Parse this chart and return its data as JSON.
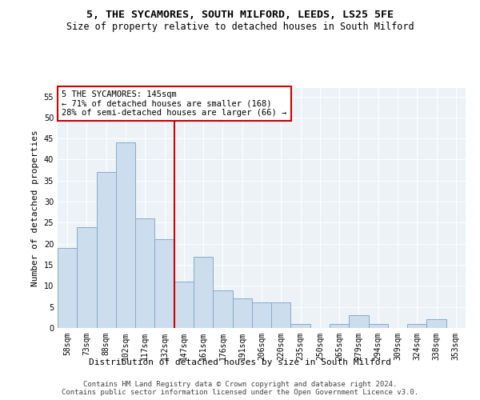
{
  "title1": "5, THE SYCAMORES, SOUTH MILFORD, LEEDS, LS25 5FE",
  "title2": "Size of property relative to detached houses in South Milford",
  "xlabel": "Distribution of detached houses by size in South Milford",
  "ylabel": "Number of detached properties",
  "categories": [
    "58sqm",
    "73sqm",
    "88sqm",
    "102sqm",
    "117sqm",
    "132sqm",
    "147sqm",
    "161sqm",
    "176sqm",
    "191sqm",
    "206sqm",
    "220sqm",
    "235sqm",
    "250sqm",
    "265sqm",
    "279sqm",
    "294sqm",
    "309sqm",
    "324sqm",
    "338sqm",
    "353sqm"
  ],
  "values": [
    19,
    24,
    37,
    44,
    26,
    21,
    11,
    17,
    9,
    7,
    6,
    6,
    1,
    0,
    1,
    3,
    1,
    0,
    1,
    2,
    0
  ],
  "bar_color": "#ccdded",
  "bar_edge_color": "#88aacc",
  "vline_color": "#cc0000",
  "annotation_text": "5 THE SYCAMORES: 145sqm\n← 71% of detached houses are smaller (168)\n28% of semi-detached houses are larger (66) →",
  "annotation_box_color": "#ffffff",
  "annotation_box_edge": "#cc0000",
  "ylim": [
    0,
    57
  ],
  "yticks": [
    0,
    5,
    10,
    15,
    20,
    25,
    30,
    35,
    40,
    45,
    50,
    55
  ],
  "background_color": "#edf2f7",
  "footer1": "Contains HM Land Registry data © Crown copyright and database right 2024.",
  "footer2": "Contains public sector information licensed under the Open Government Licence v3.0.",
  "title1_fontsize": 9.5,
  "title2_fontsize": 8.5,
  "xlabel_fontsize": 8,
  "ylabel_fontsize": 8,
  "tick_fontsize": 7,
  "annotation_fontsize": 7.5,
  "footer_fontsize": 6.5
}
